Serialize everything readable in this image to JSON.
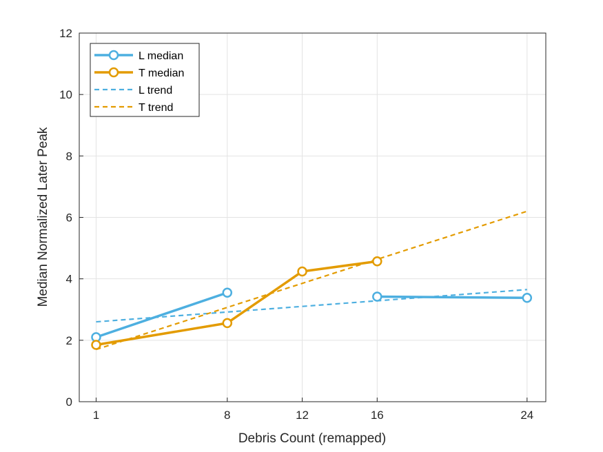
{
  "chart_data": {
    "type": "line",
    "title": "",
    "xlabel": "Debris Count (remapped)",
    "ylabel": "Median Normalized Later Peak",
    "x_ticks": [
      1,
      8,
      12,
      16,
      24
    ],
    "y_ticks": [
      0,
      2,
      4,
      6,
      8,
      10,
      12
    ],
    "xlim": [
      0.1,
      25
    ],
    "ylim": [
      0,
      12
    ],
    "grid": true,
    "legend_position": "top-left",
    "series": [
      {
        "name": "L median",
        "style": "solid-circle",
        "color": "#4DAFE0",
        "points": [
          [
            1,
            2.1
          ],
          [
            8,
            3.55
          ],
          [
            16,
            3.42
          ],
          [
            24,
            3.38
          ]
        ],
        "segments": [
          [
            [
              1,
              2.1
            ],
            [
              8,
              3.55
            ]
          ],
          [
            [
              16,
              3.42
            ],
            [
              24,
              3.38
            ]
          ]
        ]
      },
      {
        "name": "T median",
        "style": "solid-circle",
        "color": "#E39B00",
        "points": [
          [
            1,
            1.85
          ],
          [
            8,
            2.56
          ],
          [
            12,
            4.24
          ],
          [
            16,
            4.57
          ]
        ],
        "segments": [
          [
            [
              1,
              1.85
            ],
            [
              8,
              2.56
            ],
            [
              12,
              4.24
            ],
            [
              16,
              4.57
            ]
          ]
        ]
      },
      {
        "name": "L trend",
        "style": "dashed",
        "color": "#4DAFE0",
        "line": [
          [
            1,
            2.6
          ],
          [
            24,
            3.65
          ]
        ]
      },
      {
        "name": "T trend",
        "style": "dashed",
        "color": "#E39B00",
        "line": [
          [
            1,
            1.7
          ],
          [
            24,
            6.2
          ]
        ]
      }
    ]
  }
}
